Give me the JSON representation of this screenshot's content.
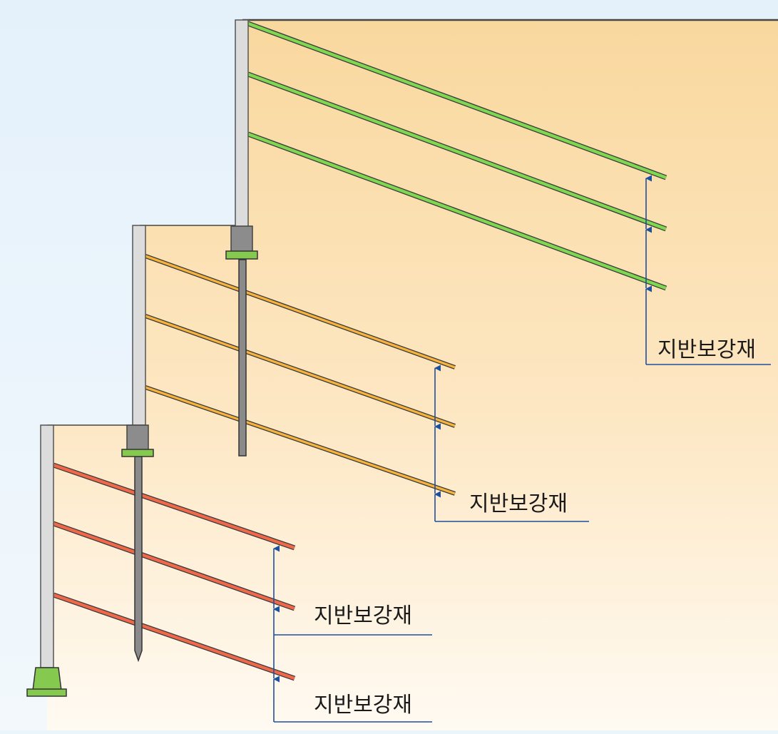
{
  "colors": {
    "sky_top": "#e4f1fb",
    "sky_bottom": "#f2f8fc",
    "soil_top": "#f9d89e",
    "soil_bottom": "#fffaf2",
    "wall_fill": "#dcdcdc",
    "wall_stroke": "#555555",
    "upper_reinforcement": "#7fd650",
    "middle_reinforcement": "#f6b23a",
    "lower_reinforcement": "#f0684a",
    "reinforcement_outline": "#3a3a3a",
    "cap_block": "#8c8c8c",
    "footing": "#86c94f",
    "anchor_pile": "#8a8a8a",
    "dimension_line": "#1e4f9c",
    "label_text": "#1a1a1a"
  },
  "labels": {
    "upper": "지반보강재",
    "middle": "지반보강재",
    "lower_first": "지반보강재",
    "lower_second": "지반보강재"
  },
  "tiers": [
    {
      "tier": "upper",
      "reinforcement_rows": 3,
      "color_key": "upper_reinforcement",
      "base": "cap-with-anchor-pile"
    },
    {
      "tier": "middle",
      "reinforcement_rows": 3,
      "color_key": "middle_reinforcement",
      "base": "cap-with-anchor-pile"
    },
    {
      "tier": "lower",
      "reinforcement_rows": 3,
      "color_key": "lower_reinforcement",
      "base": "footing"
    }
  ]
}
